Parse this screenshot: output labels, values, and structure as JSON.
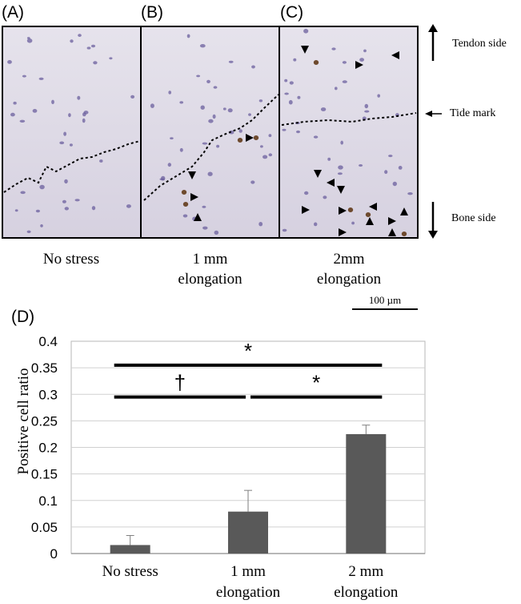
{
  "panels": [
    {
      "label": "(A)",
      "caption_line1": "No stress",
      "caption_line2": ""
    },
    {
      "label": "(B)",
      "caption_line1": "1 mm",
      "caption_line2": "elongation"
    },
    {
      "label": "(C)",
      "caption_line1": "2mm",
      "caption_line2": "elongation"
    }
  ],
  "side_labels": {
    "tendon": "Tendon side",
    "tide": "Tide mark",
    "bone": "Bone side"
  },
  "scale_bar": "100 µm",
  "colors": {
    "bar": "#595959",
    "tissue": "#dcd8e6",
    "cell": "#6b5f9e",
    "positive_cell": "#6e4a2e"
  },
  "chart_data": {
    "panel_label": "(D)",
    "type": "bar",
    "categories": [
      "No stress",
      "1 mm elongation",
      "2 mm elongation"
    ],
    "category_lines": [
      [
        "No stress"
      ],
      [
        "1 mm",
        "elongation"
      ],
      [
        "2 mm",
        "elongation"
      ]
    ],
    "values": [
      0.016,
      0.079,
      0.225
    ],
    "errors": [
      0.018,
      0.04,
      0.017
    ],
    "ylabel": "Positive cell ratio",
    "ylim": [
      0,
      0.4
    ],
    "yticks": [
      "0",
      "0.05",
      "0.1",
      "0.15",
      "0.2",
      "0.25",
      "0.3",
      "0.35",
      "0.4"
    ],
    "grid": true,
    "significance": [
      {
        "from": 0,
        "to": 2,
        "symbol": "*",
        "level": 0.355
      },
      {
        "from": 0,
        "to": 1,
        "symbol": "†",
        "level": 0.295
      },
      {
        "from": 1,
        "to": 2,
        "symbol": "*",
        "level": 0.295
      }
    ]
  }
}
